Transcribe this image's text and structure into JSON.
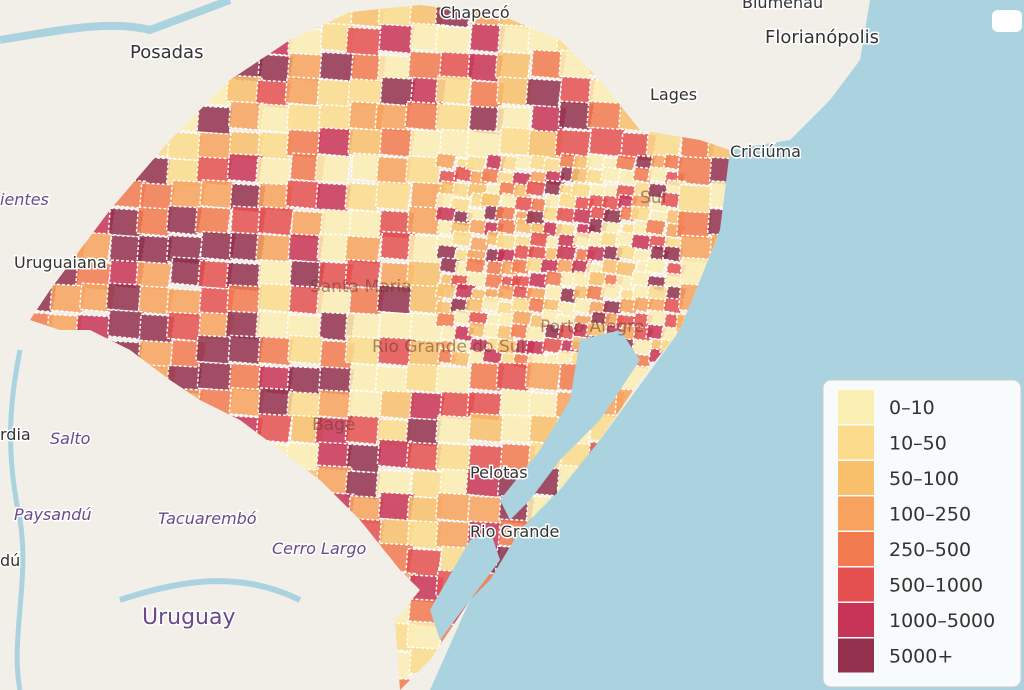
{
  "map": {
    "places": [
      "Blumenau",
      "Florianópolis",
      "Posadas",
      "Lages",
      "Criciúma",
      "Sul",
      "ientes",
      "Uruguaiana",
      "Santa Maria",
      "Porto Alegre",
      "Rio Grande do Sul",
      "rdia",
      "Salto",
      "Bagé",
      "Pelotas",
      "Rio Grande",
      "Paysandú",
      "Tacuarembó",
      "Cerro Largo",
      "dú",
      "Uruguay",
      "Chapecó"
    ]
  },
  "legend": {
    "items": [
      {
        "label": "0–10",
        "color": "#fcefb4"
      },
      {
        "label": "10–50",
        "color": "#fbdc8d"
      },
      {
        "label": "50–100",
        "color": "#f9c06c"
      },
      {
        "label": "100–250",
        "color": "#f7a25e"
      },
      {
        "label": "250–500",
        "color": "#f27a4f"
      },
      {
        "label": "500–1000",
        "color": "#e45050"
      },
      {
        "label": "1000–5000",
        "color": "#c83456"
      },
      {
        "label": "5000+",
        "color": "#92304e"
      }
    ]
  }
}
